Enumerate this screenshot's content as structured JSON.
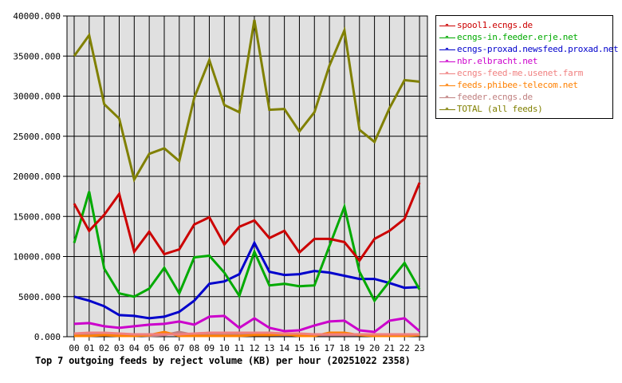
{
  "title": "Top 7 outgoing feeds by reject volume (KB) per hour (20251022 2358)",
  "legend": [
    {
      "label": "spool1.ecngs.de",
      "color": "#cc0000"
    },
    {
      "label": "ecngs-in.feeder.erje.net",
      "color": "#00aa00"
    },
    {
      "label": "ecngs-proxad.newsfeed.proxad.net",
      "color": "#0000cc"
    },
    {
      "label": "nbr.elbracht.net",
      "color": "#cc00cc"
    },
    {
      "label": "ecngs-feed-me.usenet.farm",
      "color": "#f08080"
    },
    {
      "label": "feeds.phibee-telecom.net",
      "color": "#ff8000"
    },
    {
      "label": "feeder.ecngs.de",
      "color": "#c08080"
    },
    {
      "label": "TOTAL (all feeds)",
      "color": "#808000"
    }
  ],
  "y_ticks": [
    "40000.000",
    "35000.000",
    "30000.000",
    "25000.000",
    "20000.000",
    "15000.000",
    "10000.000",
    "5000.000",
    "0.000"
  ],
  "x_ticks": [
    "00",
    "01",
    "02",
    "03",
    "04",
    "05",
    "06",
    "07",
    "08",
    "09",
    "10",
    "11",
    "12",
    "13",
    "14",
    "15",
    "16",
    "17",
    "18",
    "19",
    "20",
    "21",
    "22",
    "23"
  ],
  "chart_data": {
    "type": "line",
    "title": "Top 7 outgoing feeds by reject volume (KB) per hour (20251022 2358)",
    "xlabel": "",
    "ylabel": "",
    "ylim": [
      0,
      40000
    ],
    "grid": true,
    "legend_position": "right",
    "x": [
      "00",
      "01",
      "02",
      "03",
      "04",
      "05",
      "06",
      "07",
      "08",
      "09",
      "10",
      "11",
      "12",
      "13",
      "14",
      "15",
      "16",
      "17",
      "18",
      "19",
      "20",
      "21",
      "22",
      "23"
    ],
    "series": [
      {
        "name": "spool1.ecngs.de",
        "color": "#cc0000",
        "values": [
          16600,
          13200,
          15200,
          17800,
          10600,
          13100,
          10300,
          10900,
          14000,
          14900,
          11500,
          13700,
          14500,
          12300,
          13200,
          10500,
          12200,
          12200,
          11800,
          9500,
          12200,
          13200,
          14700,
          19200
        ]
      },
      {
        "name": "ecngs-in.feeder.erje.net",
        "color": "#00aa00",
        "values": [
          11700,
          18100,
          8500,
          5400,
          5000,
          6000,
          8600,
          5400,
          9900,
          10100,
          8000,
          5100,
          10600,
          6400,
          6600,
          6300,
          6400,
          11300,
          16200,
          8100,
          4500,
          6900,
          9200,
          5900
        ]
      },
      {
        "name": "ecngs-proxad.newsfeed.proxad.net",
        "color": "#0000cc",
        "values": [
          5000,
          4500,
          3800,
          2700,
          2600,
          2300,
          2500,
          3100,
          4500,
          6600,
          6900,
          7800,
          11700,
          8100,
          7700,
          7800,
          8200,
          8000,
          7600,
          7200,
          7200,
          6700,
          6100,
          6200
        ]
      },
      {
        "name": "nbr.elbracht.net",
        "color": "#cc00cc",
        "values": [
          1600,
          1700,
          1300,
          1100,
          1300,
          1500,
          1600,
          1900,
          1500,
          2500,
          2600,
          1100,
          2300,
          1100,
          700,
          800,
          1400,
          1900,
          2000,
          800,
          600,
          2000,
          2300,
          700
        ]
      },
      {
        "name": "ecngs-feed-me.usenet.farm",
        "color": "#f08080",
        "values": [
          400,
          500,
          500,
          400,
          300,
          300,
          300,
          300,
          400,
          500,
          500,
          500,
          500,
          500,
          400,
          400,
          300,
          300,
          300,
          300,
          300,
          300,
          300,
          300
        ]
      },
      {
        "name": "feeds.phibee-telecom.net",
        "color": "#ff8000",
        "values": [
          100,
          100,
          200,
          100,
          100,
          200,
          600,
          100,
          100,
          100,
          100,
          100,
          200,
          200,
          300,
          100,
          100,
          500,
          500,
          200,
          100,
          100,
          100,
          200
        ]
      },
      {
        "name": "feeder.ecngs.de",
        "color": "#c08080",
        "values": [
          200,
          200,
          200,
          200,
          200,
          100,
          200,
          600,
          200,
          200,
          200,
          200,
          200,
          200,
          200,
          200,
          200,
          200,
          200,
          200,
          200,
          200,
          200,
          200
        ]
      },
      {
        "name": "TOTAL (all feeds)",
        "color": "#808000",
        "values": [
          35000,
          37600,
          29000,
          27200,
          19600,
          22800,
          23500,
          21900,
          29800,
          34500,
          28900,
          28000,
          39500,
          28300,
          28400,
          25600,
          28000,
          33800,
          38200,
          25800,
          24300,
          28500,
          32000,
          31800
        ]
      }
    ]
  }
}
